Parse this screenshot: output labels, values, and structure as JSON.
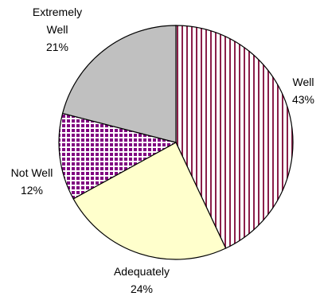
{
  "chart_data": {
    "type": "pie",
    "slices": [
      {
        "label_lines": [
          "Well"
        ],
        "percent_label": "43%",
        "value": 43,
        "fill": "stripes",
        "color": "#8a1f4a"
      },
      {
        "label_lines": [
          "Adequately"
        ],
        "percent_label": "24%",
        "value": 24,
        "fill": "solid",
        "color": "#ffffcc"
      },
      {
        "label_lines": [
          "Not Well"
        ],
        "percent_label": "12%",
        "value": 12,
        "fill": "checker",
        "color": "#800080"
      },
      {
        "label_lines": [
          "Extremely",
          "Well"
        ],
        "percent_label": "21%",
        "value": 21,
        "fill": "solid",
        "color": "#c0c0c0"
      }
    ],
    "start_angle_deg": 0,
    "direction": "clockwise"
  }
}
